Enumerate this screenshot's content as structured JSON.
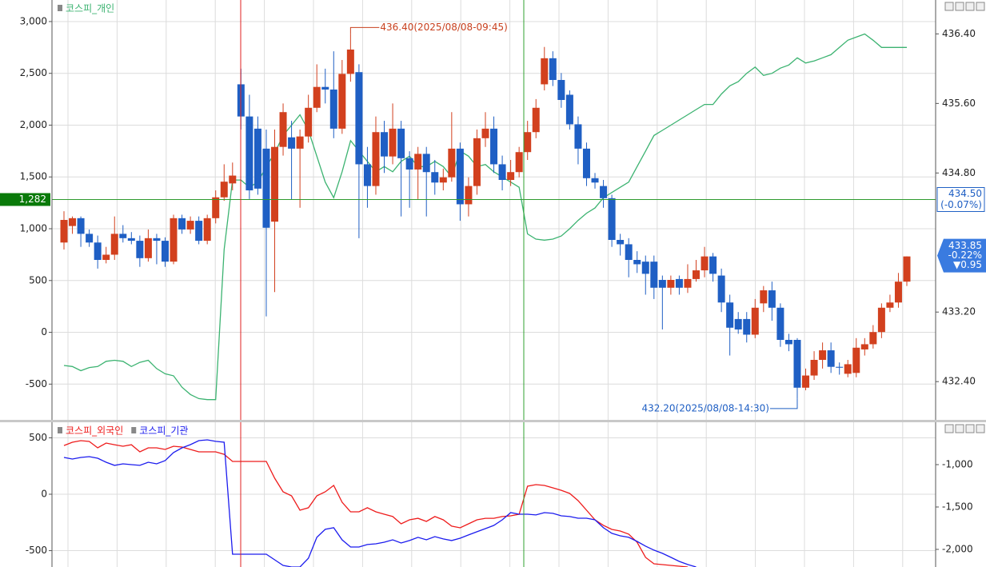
{
  "chart_data": [
    {
      "type": "candlestick",
      "series": [
        {
          "name": "코스피_개인",
          "color": "#3cb371",
          "axis": "y",
          "values": [
            -320,
            -330,
            -370,
            -340,
            -330,
            -280,
            -270,
            -280,
            -330,
            -290,
            -270,
            -350,
            -400,
            -420,
            -530,
            -600,
            -640,
            -650,
            -650,
            800,
            1470,
            1470,
            1400,
            1450,
            1600,
            1730,
            1900,
            2000,
            2100,
            1950,
            1700,
            1450,
            1300,
            1550,
            1850,
            1750,
            1650,
            1550,
            1600,
            1550,
            1650,
            1700,
            1600,
            1600,
            1650,
            1600,
            1500,
            1750,
            1700,
            1600,
            1620,
            1550,
            1500,
            1450,
            1400,
            950,
            900,
            890,
            900,
            930,
            1000,
            1080,
            1150,
            1200,
            1300,
            1350,
            1400,
            1450,
            1600,
            1750,
            1900,
            1950,
            2000,
            2050,
            2100,
            2150,
            2200,
            2200,
            2300,
            2380,
            2420,
            2500,
            2560,
            2480,
            2500,
            2550,
            2580,
            2650,
            2600,
            2620,
            2650,
            2680,
            2750,
            2820,
            2850,
            2880,
            2820,
            2750,
            2750,
            2750,
            2750
          ]
        }
      ],
      "up_color": "#d2401e",
      "down_color": "#1f5fc4",
      "ohlc": [
        [
          434.0,
          434.36,
          433.92,
          434.26
        ],
        [
          434.19,
          434.3,
          434.1,
          434.28
        ],
        [
          434.28,
          434.3,
          433.95,
          434.1
        ],
        [
          434.1,
          434.15,
          433.95,
          434.0
        ],
        [
          434.0,
          434.08,
          433.7,
          433.8
        ],
        [
          433.8,
          433.95,
          433.76,
          433.86
        ],
        [
          433.86,
          434.3,
          433.8,
          434.1
        ],
        [
          434.1,
          434.2,
          434.0,
          434.05
        ],
        [
          434.05,
          434.12,
          433.98,
          434.02
        ],
        [
          434.02,
          434.08,
          433.72,
          433.82
        ],
        [
          433.82,
          434.15,
          433.78,
          434.05
        ],
        [
          434.05,
          434.1,
          433.75,
          434.02
        ],
        [
          434.02,
          434.06,
          433.72,
          433.78
        ],
        [
          433.78,
          434.32,
          433.75,
          434.28
        ],
        [
          434.28,
          434.32,
          434.1,
          434.15
        ],
        [
          434.15,
          434.3,
          434.1,
          434.25
        ],
        [
          434.25,
          434.3,
          433.98,
          434.02
        ],
        [
          434.02,
          434.32,
          433.98,
          434.28
        ],
        [
          434.28,
          434.6,
          434.22,
          434.52
        ],
        [
          434.52,
          434.9,
          434.48,
          434.7
        ],
        [
          434.68,
          434.92,
          434.6,
          434.77
        ],
        [
          435.82,
          436.0,
          435.3,
          435.45
        ],
        [
          435.45,
          435.7,
          434.5,
          434.6
        ],
        [
          435.31,
          435.45,
          434.55,
          434.62
        ],
        [
          435.08,
          435.3,
          433.15,
          434.17
        ],
        [
          434.24,
          435.3,
          433.43,
          435.1
        ],
        [
          435.1,
          435.6,
          435.0,
          435.5
        ],
        [
          435.21,
          435.4,
          434.49,
          435.08
        ],
        [
          435.08,
          435.3,
          434.4,
          435.22
        ],
        [
          435.22,
          435.7,
          435.15,
          435.55
        ],
        [
          435.55,
          436.05,
          435.5,
          435.79
        ],
        [
          435.79,
          436.0,
          435.6,
          435.76
        ],
        [
          435.76,
          436.2,
          435.2,
          435.31
        ],
        [
          435.31,
          436.1,
          435.25,
          435.94
        ],
        [
          435.94,
          436.4,
          435.85,
          436.22
        ],
        [
          435.96,
          436.05,
          434.05,
          434.9
        ],
        [
          434.9,
          435.1,
          434.4,
          434.65
        ],
        [
          434.65,
          435.45,
          434.55,
          435.27
        ],
        [
          435.27,
          435.4,
          434.8,
          434.99
        ],
        [
          434.99,
          435.6,
          434.9,
          435.31
        ],
        [
          435.31,
          435.4,
          434.3,
          434.97
        ],
        [
          434.97,
          435.05,
          434.4,
          434.84
        ],
        [
          434.84,
          435.1,
          434.5,
          435.02
        ],
        [
          435.02,
          435.1,
          434.3,
          434.81
        ],
        [
          434.81,
          434.95,
          434.55,
          434.69
        ],
        [
          434.69,
          434.85,
          434.6,
          434.75
        ],
        [
          434.75,
          435.5,
          434.7,
          435.08
        ],
        [
          435.08,
          435.15,
          434.25,
          434.44
        ],
        [
          434.44,
          434.75,
          434.3,
          434.65
        ],
        [
          434.65,
          435.3,
          434.55,
          435.2
        ],
        [
          435.2,
          435.5,
          435.1,
          435.31
        ],
        [
          435.31,
          435.45,
          434.8,
          434.9
        ],
        [
          434.9,
          435.0,
          434.6,
          434.72
        ],
        [
          434.72,
          434.95,
          434.65,
          434.81
        ],
        [
          434.81,
          435.1,
          434.75,
          435.04
        ],
        [
          435.04,
          435.4,
          434.95,
          435.27
        ],
        [
          435.27,
          435.65,
          435.2,
          435.55
        ],
        [
          435.82,
          436.25,
          435.75,
          436.12
        ],
        [
          436.12,
          436.2,
          435.8,
          435.87
        ],
        [
          435.87,
          435.95,
          435.55,
          435.64
        ],
        [
          435.7,
          435.75,
          435.3,
          435.36
        ],
        [
          435.36,
          435.45,
          434.9,
          435.08
        ],
        [
          435.08,
          435.15,
          434.65,
          434.74
        ],
        [
          434.74,
          434.8,
          434.62,
          434.69
        ],
        [
          434.65,
          434.72,
          434.4,
          434.51
        ],
        [
          434.51,
          434.55,
          433.95,
          434.03
        ],
        [
          434.03,
          434.1,
          433.85,
          433.98
        ],
        [
          433.98,
          434.05,
          433.6,
          433.8
        ],
        [
          433.8,
          433.9,
          433.65,
          433.75
        ],
        [
          433.78,
          433.85,
          433.4,
          433.64
        ],
        [
          433.78,
          433.85,
          433.35,
          433.48
        ],
        [
          433.57,
          433.62,
          433.0,
          433.48
        ],
        [
          433.48,
          433.62,
          433.4,
          433.57
        ],
        [
          433.58,
          433.62,
          433.4,
          433.48
        ],
        [
          433.48,
          433.75,
          433.42,
          433.58
        ],
        [
          433.58,
          433.8,
          433.55,
          433.68
        ],
        [
          433.68,
          433.95,
          433.6,
          433.84
        ],
        [
          433.84,
          433.88,
          433.55,
          433.64
        ],
        [
          433.62,
          433.7,
          433.2,
          433.31
        ],
        [
          433.31,
          433.4,
          432.7,
          433.02
        ],
        [
          433.12,
          433.2,
          432.95,
          433.0
        ],
        [
          433.12,
          433.2,
          432.85,
          432.94
        ],
        [
          432.94,
          433.35,
          432.9,
          433.25
        ],
        [
          433.3,
          433.5,
          433.2,
          433.45
        ],
        [
          433.45,
          433.55,
          433.1,
          433.25
        ],
        [
          433.25,
          433.3,
          432.8,
          432.88
        ],
        [
          432.88,
          432.95,
          432.75,
          432.83
        ],
        [
          432.88,
          432.9,
          432.2,
          432.33
        ],
        [
          432.33,
          432.55,
          432.3,
          432.47
        ],
        [
          432.47,
          432.75,
          432.42,
          432.65
        ],
        [
          432.65,
          432.85,
          432.55,
          432.76
        ],
        [
          432.76,
          432.85,
          432.5,
          432.57
        ],
        [
          432.57,
          432.62,
          432.48,
          432.56
        ],
        [
          432.49,
          432.65,
          432.45,
          432.6
        ],
        [
          432.5,
          432.9,
          432.45,
          432.79
        ],
        [
          432.77,
          432.9,
          432.7,
          432.83
        ],
        [
          432.83,
          433.05,
          432.78,
          432.97
        ],
        [
          432.97,
          433.3,
          432.9,
          433.25
        ],
        [
          433.25,
          433.4,
          433.2,
          433.31
        ],
        [
          433.31,
          433.65,
          433.25,
          433.55
        ],
        [
          433.55,
          433.84,
          433.5,
          433.84
        ]
      ],
      "ylim": [
        -845,
        3208
      ],
      "yticks": [
        {
          "value": 3000,
          "label": "3,000"
        },
        {
          "value": 2500,
          "label": "2,500"
        },
        {
          "value": 2000,
          "label": "2,000"
        },
        {
          "value": 1500,
          "label": "1,500"
        },
        {
          "value": 1000,
          "label": "1,000"
        },
        500,
        0,
        -500
      ],
      "y2lim": [
        431.96,
        436.79
      ],
      "y2ticks": [
        {
          "value": 436.4,
          "label": "436.40"
        },
        {
          "value": 435.6,
          "label": "435.60"
        },
        {
          "value": 434.8,
          "label": "434.80"
        },
        {
          "value": 433.2,
          "label": "433.20"
        },
        {
          "value": 432.4,
          "label": "432.40"
        }
      ],
      "grid": true,
      "crosshair": {
        "y": {
          "value": 1282,
          "label": "1,282"
        },
        "y2": {
          "value": 434.5,
          "label": "434.50"
        },
        "y2_change": "(-0.07%)"
      },
      "last_price": {
        "value": 433.85,
        "label": "433.85",
        "change": "-0.22%",
        "diff": "▼0.95"
      },
      "annotations": [
        {
          "value": 436.4,
          "label": "436.40(2025/08/08-09:45)"
        },
        {
          "value": 432.2,
          "label": "432.20(2025/08/08-14:30)"
        }
      ]
    },
    {
      "type": "line",
      "series": [
        {
          "name": "코스피_외국인",
          "color": "#ee1c1c",
          "axis": "y",
          "values": [
            432,
            461,
            475,
            468,
            411,
            454,
            439,
            425,
            439,
            376,
            411,
            411,
            397,
            425,
            418,
            397,
            376,
            376,
            376,
            354,
            291,
            291,
            291,
            291,
            291,
            142,
            21,
            -14,
            -142,
            -120,
            -14,
            21,
            78,
            -71,
            -156,
            -156,
            -120,
            -156,
            -177,
            -198,
            -262,
            -227,
            -213,
            -241,
            -198,
            -227,
            -283,
            -298,
            -262,
            -227,
            -213,
            -213,
            -198,
            -191,
            -177,
            71,
            85,
            78,
            57,
            35,
            7,
            -57,
            -142,
            -227,
            -276,
            -312,
            -326,
            -354,
            -425,
            -560,
            -617,
            -624,
            -631,
            -638,
            -645
          ]
        },
        {
          "name": "코스피_기관",
          "color": "#1c1cee",
          "axis": "y2",
          "values": [
            -915,
            -934,
            -915,
            -906,
            -925,
            -972,
            -1009,
            -991,
            -1000,
            -1009,
            -972,
            -991,
            -953,
            -858,
            -802,
            -764,
            -717,
            -708,
            -726,
            -736,
            -2057,
            -2057,
            -2057,
            -2057,
            -2057,
            -2123,
            -2189,
            -2208,
            -2208,
            -2104,
            -1858,
            -1764,
            -1745,
            -1887,
            -1972,
            -1972,
            -1943,
            -1934,
            -1915,
            -1887,
            -1925,
            -1896,
            -1858,
            -1887,
            -1849,
            -1877,
            -1896,
            -1868,
            -1830,
            -1792,
            -1755,
            -1717,
            -1651,
            -1566,
            -1585,
            -1585,
            -1594,
            -1566,
            -1575,
            -1604,
            -1613,
            -1632,
            -1632,
            -1651,
            -1745,
            -1811,
            -1840,
            -1858,
            -1906,
            -1962,
            -2009,
            -2047,
            -2094,
            -2142,
            -2179,
            -2208
          ]
        }
      ],
      "ylim": [
        -645,
        638
      ],
      "yticks": [
        500,
        0,
        -500
      ],
      "y2lim": [
        -2208,
        -500
      ],
      "y2ticks": [
        {
          "value": -1000,
          "label": "-1,000"
        },
        {
          "value": -1500,
          "label": "-1,500"
        },
        {
          "value": -2000,
          "label": "-2,000"
        }
      ],
      "grid": true
    }
  ]
}
